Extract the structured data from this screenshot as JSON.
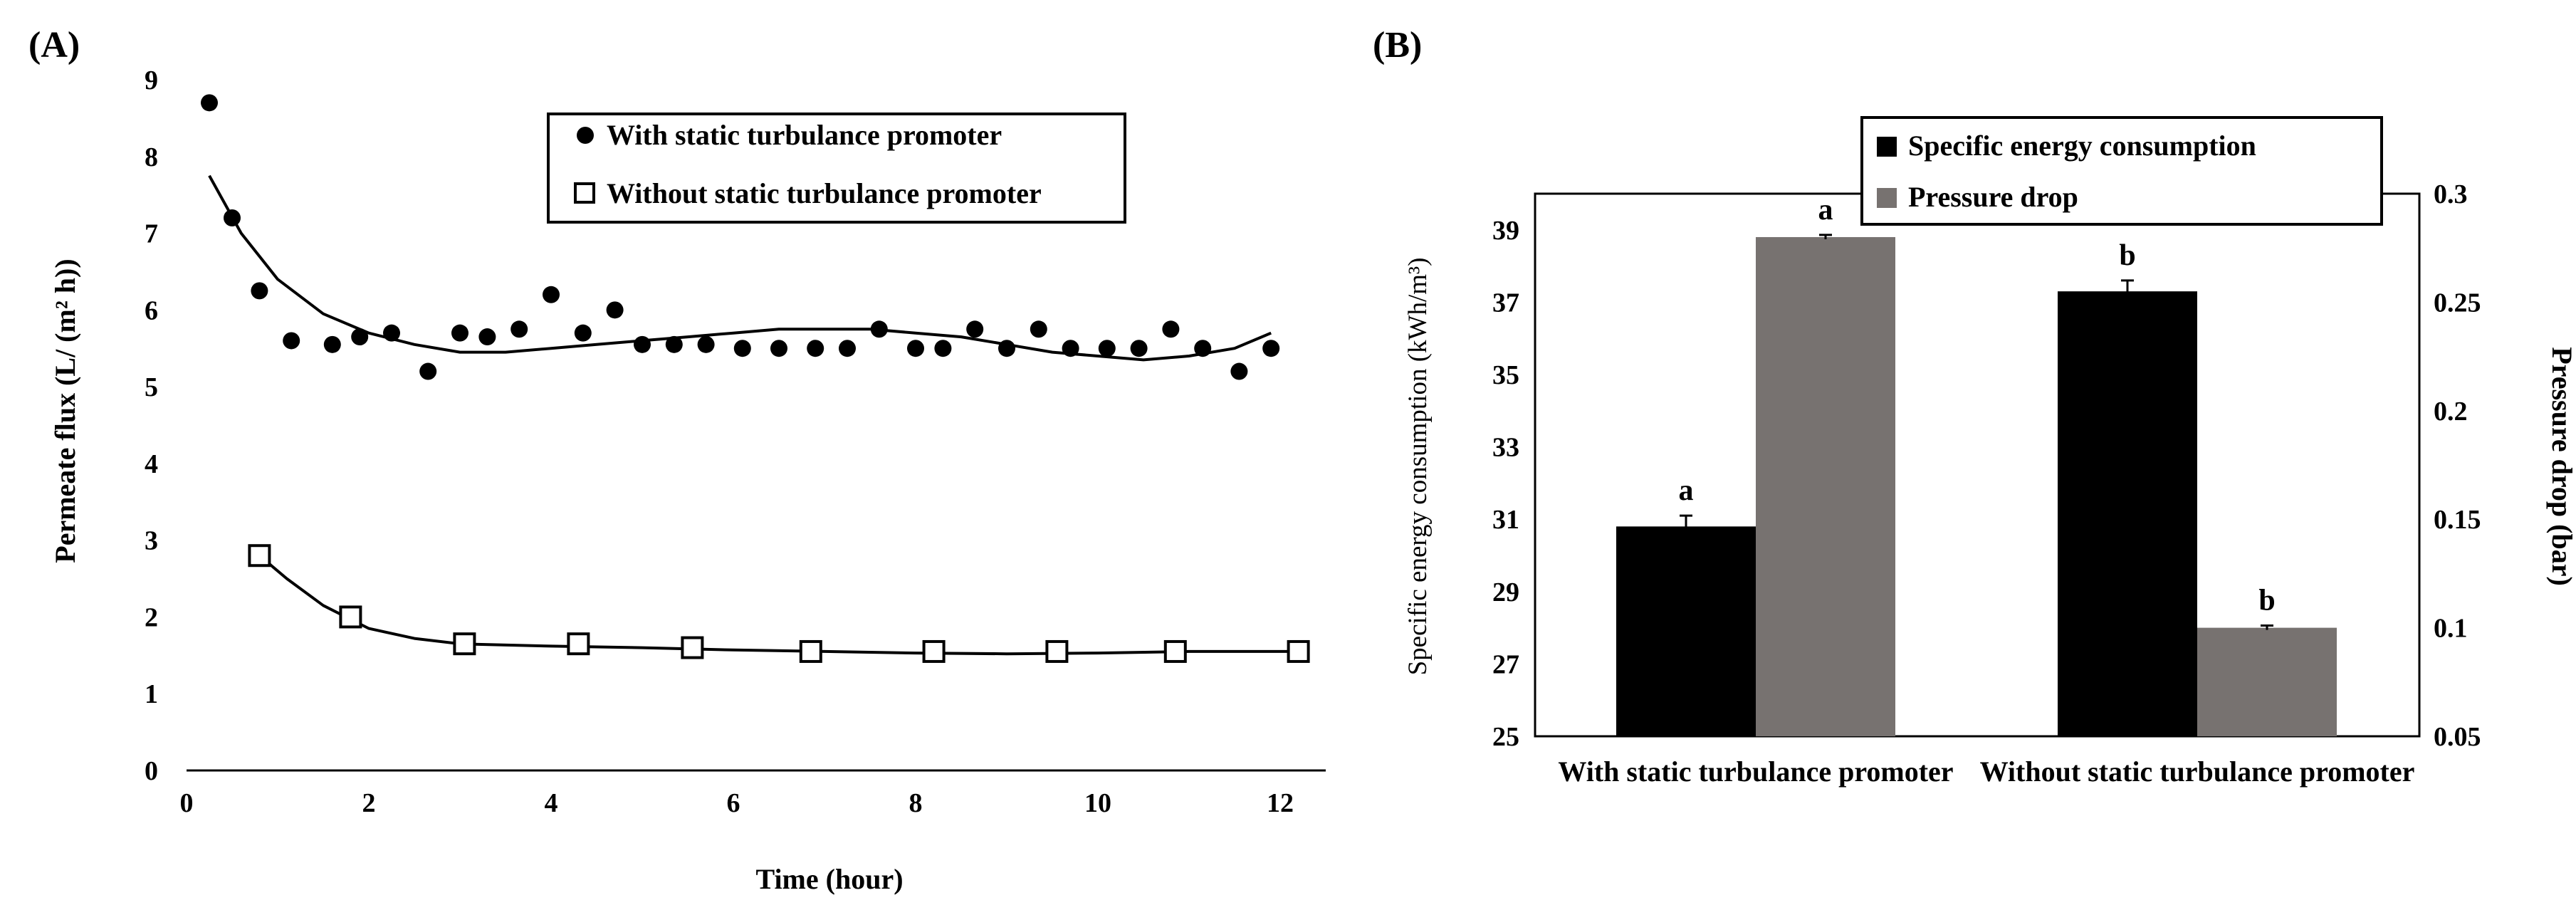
{
  "chart_data": [
    {
      "type": "scatter",
      "panel_label": "(A)",
      "xlabel": "Time (hour)",
      "ylabel": "Permeate flux (L/ (m² h))",
      "xlim": [
        0,
        12.5
      ],
      "ylim": [
        0,
        9
      ],
      "x_ticks": [
        0,
        2,
        4,
        6,
        8,
        10,
        12
      ],
      "y_ticks": [
        0,
        1,
        2,
        3,
        4,
        5,
        6,
        7,
        8,
        9
      ],
      "legend_position": "top-right",
      "series": [
        {
          "name": "With static turbulance promoter",
          "marker": "filled-circle",
          "points": [
            [
              0.25,
              8.7
            ],
            [
              0.5,
              7.2
            ],
            [
              0.8,
              6.25
            ],
            [
              1.15,
              5.6
            ],
            [
              1.6,
              5.55
            ],
            [
              1.9,
              5.65
            ],
            [
              2.25,
              5.7
            ],
            [
              2.65,
              5.2
            ],
            [
              3.0,
              5.7
            ],
            [
              3.3,
              5.65
            ],
            [
              3.65,
              5.75
            ],
            [
              4.0,
              6.2
            ],
            [
              4.35,
              5.7
            ],
            [
              4.7,
              6.0
            ],
            [
              5.0,
              5.55
            ],
            [
              5.35,
              5.55
            ],
            [
              5.7,
              5.55
            ],
            [
              6.1,
              5.5
            ],
            [
              6.5,
              5.5
            ],
            [
              6.9,
              5.5
            ],
            [
              7.25,
              5.5
            ],
            [
              7.6,
              5.75
            ],
            [
              8.0,
              5.5
            ],
            [
              8.3,
              5.5
            ],
            [
              8.65,
              5.75
            ],
            [
              9.0,
              5.5
            ],
            [
              9.35,
              5.75
            ],
            [
              9.7,
              5.5
            ],
            [
              10.1,
              5.5
            ],
            [
              10.45,
              5.5
            ],
            [
              10.8,
              5.75
            ],
            [
              11.15,
              5.5
            ],
            [
              11.55,
              5.2
            ],
            [
              11.9,
              5.5
            ]
          ],
          "trend": [
            [
              0.25,
              7.75
            ],
            [
              0.6,
              7.0
            ],
            [
              1.0,
              6.4
            ],
            [
              1.5,
              5.95
            ],
            [
              2.0,
              5.7
            ],
            [
              2.5,
              5.55
            ],
            [
              3.0,
              5.45
            ],
            [
              3.5,
              5.45
            ],
            [
              4.0,
              5.5
            ],
            [
              4.5,
              5.55
            ],
            [
              5.0,
              5.6
            ],
            [
              5.5,
              5.65
            ],
            [
              6.0,
              5.7
            ],
            [
              6.5,
              5.75
            ],
            [
              7.0,
              5.75
            ],
            [
              7.5,
              5.75
            ],
            [
              8.0,
              5.7
            ],
            [
              8.5,
              5.65
            ],
            [
              9.0,
              5.55
            ],
            [
              9.5,
              5.45
            ],
            [
              10.0,
              5.4
            ],
            [
              10.5,
              5.35
            ],
            [
              11.0,
              5.4
            ],
            [
              11.5,
              5.5
            ],
            [
              11.9,
              5.7
            ]
          ]
        },
        {
          "name": "Without static turbulance promoter",
          "marker": "open-square",
          "points": [
            [
              0.8,
              2.8
            ],
            [
              1.8,
              2.0
            ],
            [
              3.05,
              1.65
            ],
            [
              4.3,
              1.65
            ],
            [
              5.55,
              1.6
            ],
            [
              6.85,
              1.55
            ],
            [
              8.2,
              1.55
            ],
            [
              9.55,
              1.55
            ],
            [
              10.85,
              1.55
            ],
            [
              12.2,
              1.55
            ]
          ],
          "trend": [
            [
              0.8,
              2.8
            ],
            [
              1.1,
              2.5
            ],
            [
              1.5,
              2.15
            ],
            [
              2.0,
              1.85
            ],
            [
              2.5,
              1.72
            ],
            [
              3.0,
              1.65
            ],
            [
              4.0,
              1.62
            ],
            [
              5.0,
              1.6
            ],
            [
              6.0,
              1.57
            ],
            [
              7.0,
              1.55
            ],
            [
              8.0,
              1.53
            ],
            [
              9.0,
              1.52
            ],
            [
              10.0,
              1.53
            ],
            [
              11.0,
              1.55
            ],
            [
              12.2,
              1.55
            ]
          ]
        }
      ]
    },
    {
      "type": "bar",
      "panel_label": "(B)",
      "categories": [
        "With static turbulance promoter",
        "Without static turbulance promoter"
      ],
      "ylabel": "Specific energy consumption (kWh/m³)",
      "ylabel_right": "Pressure drop (bar)",
      "ylim": [
        25,
        40
      ],
      "ylim_right": [
        0.05,
        0.3
      ],
      "y_ticks": [
        25,
        27,
        29,
        31,
        33,
        35,
        37,
        39
      ],
      "y_ticks_right": [
        "0.05",
        "0.1",
        "0.15",
        "0.2",
        "0.25",
        "0.3"
      ],
      "legend_position": "top-center",
      "series": [
        {
          "name": "Specific energy consumption",
          "axis": "left",
          "color": "#000000",
          "values": [
            30.8,
            37.3
          ],
          "errors": [
            0.3,
            0.3
          ],
          "letters": [
            "a",
            "b"
          ]
        },
        {
          "name": "Pressure drop",
          "axis": "right",
          "color": "#777270",
          "values": [
            0.28,
            0.1
          ],
          "errors": [
            0.001,
            0.001
          ],
          "letters": [
            "a",
            "b"
          ]
        }
      ]
    }
  ]
}
